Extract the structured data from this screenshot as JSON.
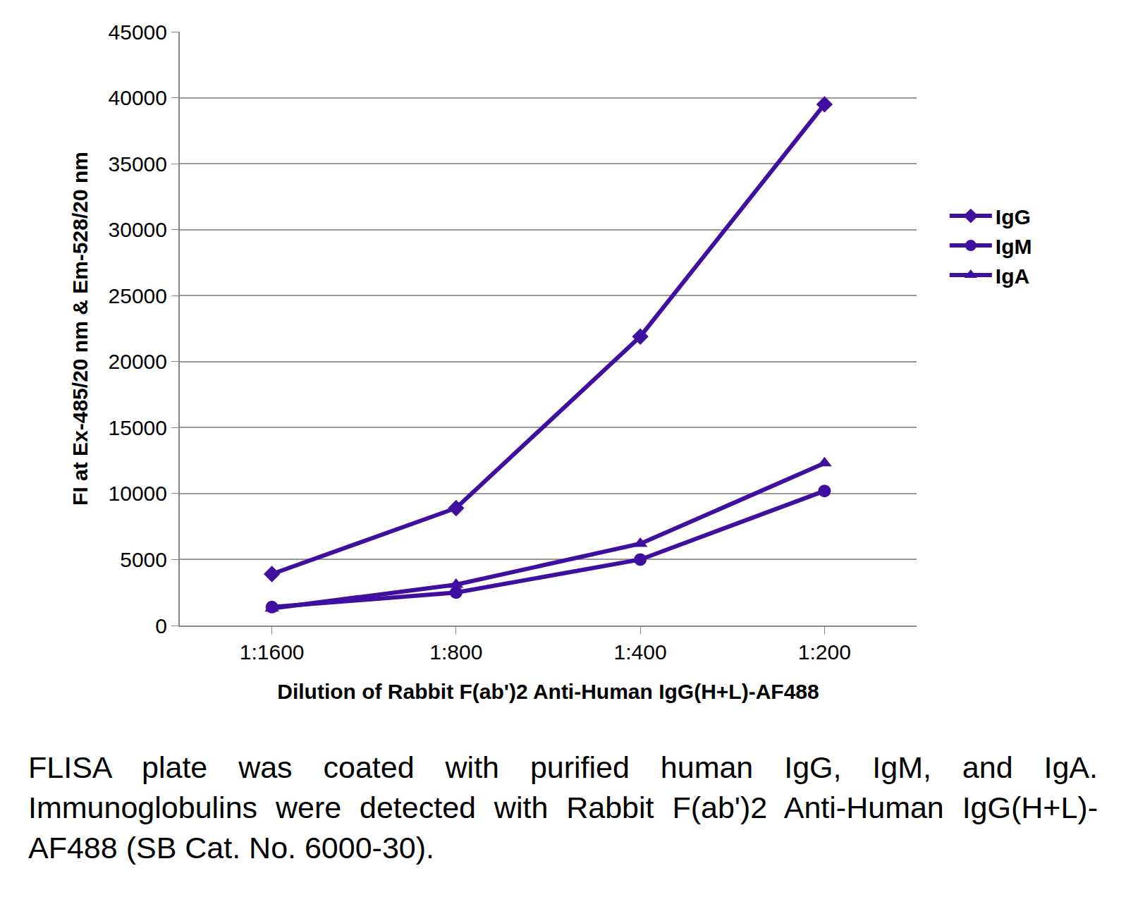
{
  "chart_data": {
    "type": "line",
    "x_label": "Dilution of Rabbit F(ab')2 Anti-Human IgG(H+L)-AF488",
    "y_label": "FI at Ex-485/20 nm & Em-528/20 nm",
    "caption": "FLISA plate was coated with purified human IgG, IgM, and IgA. Immunoglobulins were detected with Rabbit F(ab')2 Anti-Human IgG(H+L)-AF488 (SB Cat. No. 6000-30).",
    "categories": [
      "1:1600",
      "1:800",
      "1:400",
      "1:200"
    ],
    "series": [
      {
        "name": "IgG",
        "color": "#3f0fa0",
        "marker": "diamond",
        "values": [
          3900,
          8900,
          21900,
          39500
        ]
      },
      {
        "name": "IgM",
        "color": "#3f0fa0",
        "marker": "circle",
        "values": [
          1400,
          2500,
          5000,
          10200
        ]
      },
      {
        "name": "IgA",
        "color": "#3f0fa0",
        "marker": "triangle-up",
        "values": [
          1300,
          3100,
          6200,
          12300
        ]
      }
    ],
    "ylim": [
      0,
      45000
    ],
    "yticks": [
      0,
      5000,
      10000,
      15000,
      20000,
      25000,
      30000,
      35000,
      40000,
      45000
    ],
    "grid": true,
    "legend": "right"
  }
}
